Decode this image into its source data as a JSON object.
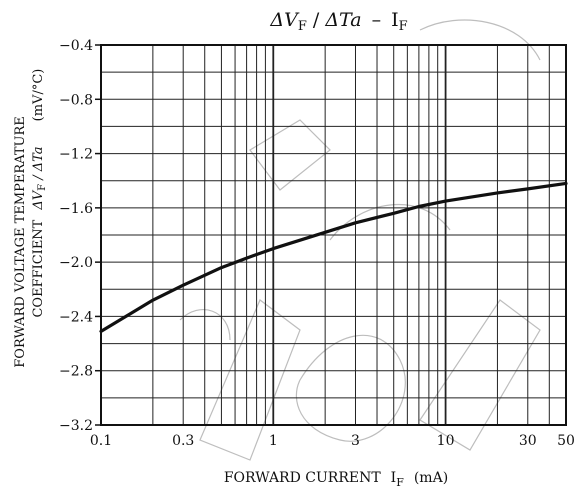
{
  "chart_data": {
    "type": "line",
    "title": {
      "main": "ΔV",
      "main_sub": "F",
      "sep": " / ",
      "second": "ΔTa",
      "dash": "–",
      "third": "I",
      "third_sub": "F"
    },
    "xlabel": {
      "main": "FORWARD CURRENT",
      "symbol": "I",
      "symbol_sub": "F",
      "unit": "(mA)"
    },
    "ylabel": {
      "line1": "FORWARD VOLTAGE TEMPERATURE",
      "line2_prefix": "COEFFICIENT",
      "line2_symbol": "ΔV",
      "line2_symbol_sub": "F",
      "line2_rest": " / ΔTa",
      "unit": "(mV/°C)"
    },
    "x_scale": "log",
    "xlim": [
      0.1,
      50
    ],
    "ylim": [
      -3.2,
      -0.4
    ],
    "x_ticks": [
      {
        "value": 0.1,
        "label": "0.1"
      },
      {
        "value": 0.3,
        "label": "0.3"
      },
      {
        "value": 1,
        "label": "1"
      },
      {
        "value": 3,
        "label": "3"
      },
      {
        "value": 10,
        "label": "10"
      },
      {
        "value": 30,
        "label": "30"
      },
      {
        "value": 50,
        "label": "50"
      }
    ],
    "y_ticks": [
      {
        "value": -3.2,
        "label": "−3.2"
      },
      {
        "value": -2.8,
        "label": "−2.8"
      },
      {
        "value": -2.4,
        "label": "−2.4"
      },
      {
        "value": -2.0,
        "label": "−2.0"
      },
      {
        "value": -1.6,
        "label": "−1.6"
      },
      {
        "value": -1.2,
        "label": "−1.2"
      },
      {
        "value": -0.8,
        "label": "−0.8"
      },
      {
        "value": -0.4,
        "label": "−0.4"
      }
    ],
    "grid": true,
    "series": [
      {
        "x": [
          0.1,
          0.2,
          0.3,
          0.5,
          0.7,
          1,
          2,
          3,
          5,
          7,
          10,
          20,
          30,
          50
        ],
        "y": [
          -2.51,
          -2.28,
          -2.17,
          -2.04,
          -1.97,
          -1.9,
          -1.78,
          -1.71,
          -1.64,
          -1.59,
          -1.55,
          -1.49,
          -1.46,
          -1.42
        ]
      }
    ],
    "colors": {
      "line": "#111111",
      "grid": "#222222",
      "background": "#ffffff"
    }
  }
}
